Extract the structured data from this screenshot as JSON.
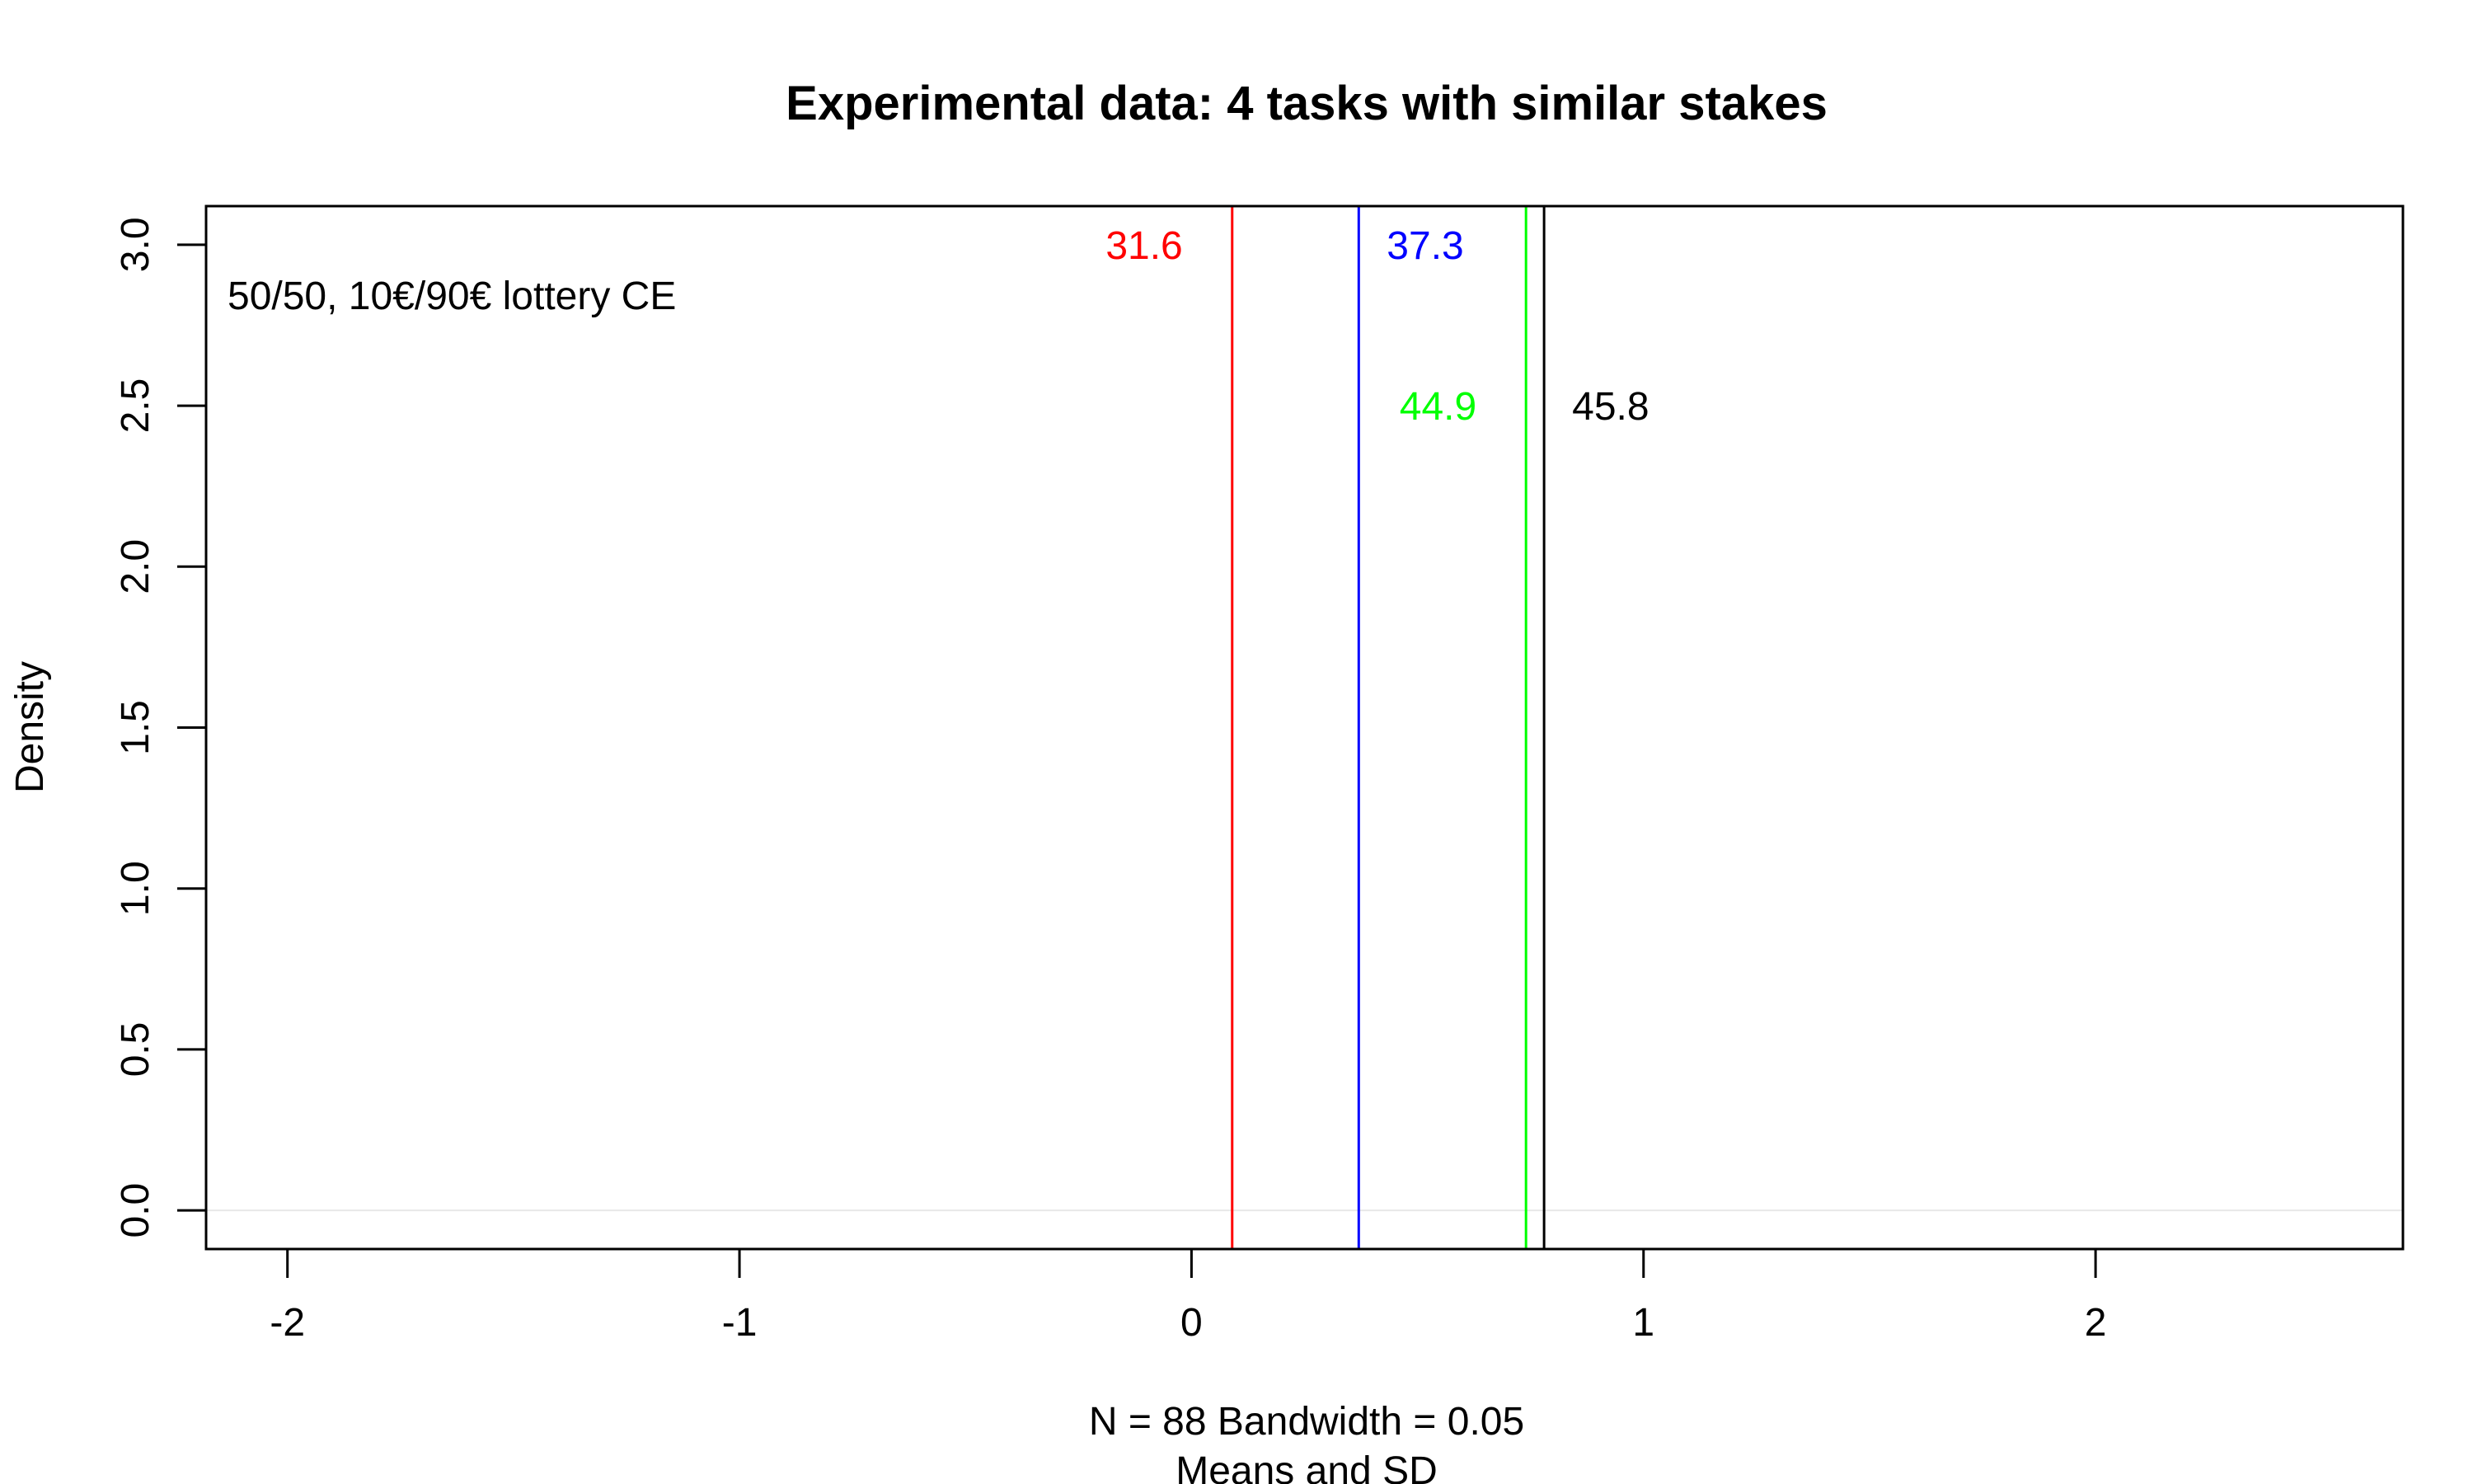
{
  "chart_data": {
    "type": "line",
    "title": "Experimental data: 4 tasks with similar stakes",
    "xlabel": "N = 88   Bandwidth = 0.05",
    "xlabel2": "Means and SD",
    "ylabel": "Density",
    "annotation": "50/50, 10€/90€ lottery CE",
    "xlim": [
      -2.18,
      2.68
    ],
    "ylim": [
      -0.12,
      3.12
    ],
    "xticks": [
      -2,
      -1,
      0,
      1,
      2
    ],
    "xtick_labels": [
      "-2",
      "-1",
      "0",
      "1",
      "2"
    ],
    "yticks": [
      0.0,
      0.5,
      1.0,
      1.5,
      2.0,
      2.5,
      3.0
    ],
    "ytick_labels": [
      "0.0",
      "0.5",
      "1.0",
      "1.5",
      "2.0",
      "2.5",
      "3.0"
    ],
    "grid": false,
    "baseline": 0,
    "vlines": [
      {
        "x": 0.09,
        "color": "#ff0000",
        "label": "31.6",
        "label_y": 3.0,
        "label_side": "left"
      },
      {
        "x": 0.37,
        "color": "#0000ff",
        "label": "37.3",
        "label_y": 3.0,
        "label_side": "right"
      },
      {
        "x": 0.74,
        "color": "#00ff00",
        "label": "44.9",
        "label_y": 2.5,
        "label_side": "left"
      },
      {
        "x": 0.78,
        "color": "#000000",
        "label": "45.8",
        "label_y": 2.5,
        "label_side": "right"
      }
    ]
  }
}
